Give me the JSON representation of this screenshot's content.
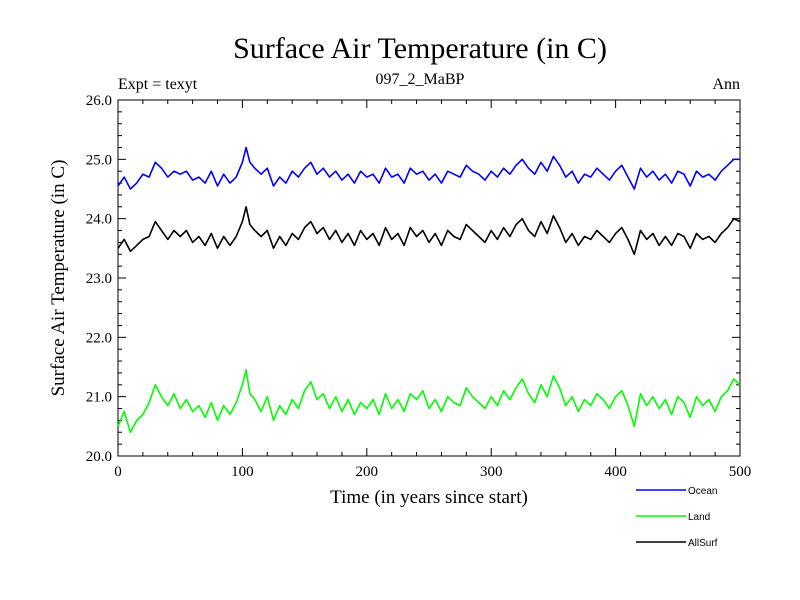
{
  "chart_data": {
    "type": "line",
    "title": "Surface Air Temperature (in C)",
    "subtitle": "097_2_MaBP",
    "left_note": "Expt = texyt",
    "right_note": "Ann",
    "xlabel": "Time (in years since start)",
    "ylabel": "Surface Air Temperature (in C)",
    "xlim": [
      0,
      500
    ],
    "ylim": [
      20.0,
      26.0
    ],
    "xticks": [
      0,
      100,
      200,
      300,
      400,
      500
    ],
    "xtick_labels": [
      "0",
      "100",
      "200",
      "300",
      "400",
      "500"
    ],
    "yticks": [
      20.0,
      21.0,
      22.0,
      23.0,
      24.0,
      25.0,
      26.0
    ],
    "ytick_labels": [
      "20.0",
      "21.0",
      "22.0",
      "23.0",
      "24.0",
      "25.0",
      "26.0"
    ],
    "grid": false,
    "legend_position": "bottom-right, below plot",
    "series": [
      {
        "name": "Ocean",
        "color": "#0000ff",
        "x": [
          0,
          5,
          10,
          15,
          20,
          25,
          30,
          35,
          40,
          45,
          50,
          55,
          60,
          65,
          70,
          75,
          80,
          85,
          90,
          95,
          100,
          103,
          106,
          110,
          115,
          120,
          125,
          130,
          135,
          140,
          145,
          150,
          155,
          160,
          165,
          170,
          175,
          180,
          185,
          190,
          195,
          200,
          205,
          210,
          215,
          220,
          225,
          230,
          235,
          240,
          245,
          250,
          255,
          260,
          265,
          270,
          275,
          280,
          285,
          290,
          295,
          300,
          305,
          310,
          315,
          320,
          325,
          330,
          335,
          340,
          345,
          350,
          355,
          360,
          365,
          370,
          375,
          380,
          385,
          390,
          395,
          400,
          405,
          410,
          415,
          420,
          425,
          430,
          435,
          440,
          445,
          450,
          455,
          460,
          465,
          470,
          475,
          480,
          485,
          490,
          495,
          500
        ],
        "values": [
          24.55,
          24.7,
          24.5,
          24.6,
          24.75,
          24.7,
          24.95,
          24.85,
          24.7,
          24.8,
          24.75,
          24.8,
          24.65,
          24.7,
          24.6,
          24.8,
          24.55,
          24.75,
          24.6,
          24.7,
          24.95,
          25.2,
          24.95,
          24.85,
          24.75,
          24.85,
          24.55,
          24.7,
          24.6,
          24.8,
          24.7,
          24.85,
          24.95,
          24.75,
          24.85,
          24.7,
          24.8,
          24.65,
          24.75,
          24.6,
          24.8,
          24.7,
          24.75,
          24.6,
          24.85,
          24.7,
          24.75,
          24.6,
          24.85,
          24.75,
          24.8,
          24.65,
          24.75,
          24.6,
          24.8,
          24.75,
          24.7,
          24.9,
          24.8,
          24.75,
          24.65,
          24.8,
          24.7,
          24.85,
          24.75,
          24.9,
          25.0,
          24.85,
          24.75,
          24.95,
          24.8,
          25.05,
          24.9,
          24.7,
          24.8,
          24.6,
          24.75,
          24.7,
          24.85,
          24.75,
          24.65,
          24.8,
          24.9,
          24.7,
          24.5,
          24.85,
          24.7,
          24.8,
          24.65,
          24.75,
          24.6,
          24.8,
          24.75,
          24.55,
          24.8,
          24.7,
          24.75,
          24.65,
          24.8,
          24.9,
          25.0,
          25.0
        ]
      },
      {
        "name": "Land",
        "color": "#00ff00",
        "x": [
          0,
          5,
          10,
          15,
          20,
          25,
          30,
          35,
          40,
          45,
          50,
          55,
          60,
          65,
          70,
          75,
          80,
          85,
          90,
          95,
          100,
          103,
          106,
          110,
          115,
          120,
          125,
          130,
          135,
          140,
          145,
          150,
          155,
          160,
          165,
          170,
          175,
          180,
          185,
          190,
          195,
          200,
          205,
          210,
          215,
          220,
          225,
          230,
          235,
          240,
          245,
          250,
          255,
          260,
          265,
          270,
          275,
          280,
          285,
          290,
          295,
          300,
          305,
          310,
          315,
          320,
          325,
          330,
          335,
          340,
          345,
          350,
          355,
          360,
          365,
          370,
          375,
          380,
          385,
          390,
          395,
          400,
          405,
          410,
          415,
          420,
          425,
          430,
          435,
          440,
          445,
          450,
          455,
          460,
          465,
          470,
          475,
          480,
          485,
          490,
          495,
          500
        ],
        "values": [
          20.5,
          20.75,
          20.4,
          20.6,
          20.7,
          20.9,
          21.2,
          21.0,
          20.85,
          21.05,
          20.8,
          20.95,
          20.75,
          20.85,
          20.65,
          20.9,
          20.6,
          20.85,
          20.7,
          20.9,
          21.2,
          21.45,
          21.05,
          20.95,
          20.75,
          21.0,
          20.6,
          20.85,
          20.7,
          20.95,
          20.8,
          21.1,
          21.25,
          20.95,
          21.05,
          20.8,
          21.0,
          20.75,
          20.95,
          20.7,
          20.9,
          20.8,
          20.95,
          20.7,
          21.05,
          20.8,
          20.95,
          20.75,
          21.05,
          20.95,
          21.1,
          20.8,
          20.95,
          20.75,
          21.0,
          20.9,
          20.85,
          21.15,
          21.0,
          20.9,
          20.8,
          21.0,
          20.85,
          21.1,
          20.95,
          21.15,
          21.3,
          21.05,
          20.9,
          21.2,
          21.0,
          21.35,
          21.15,
          20.85,
          21.0,
          20.75,
          20.95,
          20.85,
          21.05,
          20.95,
          20.8,
          21.0,
          21.1,
          20.85,
          20.5,
          21.05,
          20.85,
          21.0,
          20.8,
          20.95,
          20.7,
          21.0,
          20.9,
          20.65,
          21.0,
          20.85,
          20.95,
          20.75,
          21.0,
          21.1,
          21.3,
          21.2
        ]
      },
      {
        "name": "AllSurf",
        "color": "#000000",
        "x": [
          0,
          5,
          10,
          15,
          20,
          25,
          30,
          35,
          40,
          45,
          50,
          55,
          60,
          65,
          70,
          75,
          80,
          85,
          90,
          95,
          100,
          103,
          106,
          110,
          115,
          120,
          125,
          130,
          135,
          140,
          145,
          150,
          155,
          160,
          165,
          170,
          175,
          180,
          185,
          190,
          195,
          200,
          205,
          210,
          215,
          220,
          225,
          230,
          235,
          240,
          245,
          250,
          255,
          260,
          265,
          270,
          275,
          280,
          285,
          290,
          295,
          300,
          305,
          310,
          315,
          320,
          325,
          330,
          335,
          340,
          345,
          350,
          355,
          360,
          365,
          370,
          375,
          380,
          385,
          390,
          395,
          400,
          405,
          410,
          415,
          420,
          425,
          430,
          435,
          440,
          445,
          450,
          455,
          460,
          465,
          470,
          475,
          480,
          485,
          490,
          495,
          500
        ],
        "values": [
          23.5,
          23.65,
          23.45,
          23.55,
          23.65,
          23.7,
          23.95,
          23.8,
          23.65,
          23.8,
          23.7,
          23.8,
          23.6,
          23.7,
          23.55,
          23.75,
          23.5,
          23.7,
          23.55,
          23.7,
          23.95,
          24.2,
          23.9,
          23.8,
          23.7,
          23.8,
          23.5,
          23.7,
          23.55,
          23.75,
          23.65,
          23.85,
          23.95,
          23.75,
          23.85,
          23.65,
          23.8,
          23.6,
          23.75,
          23.55,
          23.8,
          23.65,
          23.75,
          23.55,
          23.85,
          23.65,
          23.75,
          23.55,
          23.85,
          23.7,
          23.8,
          23.6,
          23.75,
          23.55,
          23.8,
          23.7,
          23.65,
          23.9,
          23.8,
          23.7,
          23.6,
          23.8,
          23.65,
          23.85,
          23.7,
          23.9,
          24.0,
          23.8,
          23.7,
          23.95,
          23.75,
          24.05,
          23.85,
          23.6,
          23.75,
          23.55,
          23.7,
          23.65,
          23.8,
          23.7,
          23.6,
          23.75,
          23.85,
          23.65,
          23.4,
          23.8,
          23.65,
          23.75,
          23.55,
          23.7,
          23.55,
          23.75,
          23.7,
          23.5,
          23.75,
          23.65,
          23.7,
          23.6,
          23.75,
          23.85,
          24.0,
          23.95
        ]
      }
    ]
  }
}
